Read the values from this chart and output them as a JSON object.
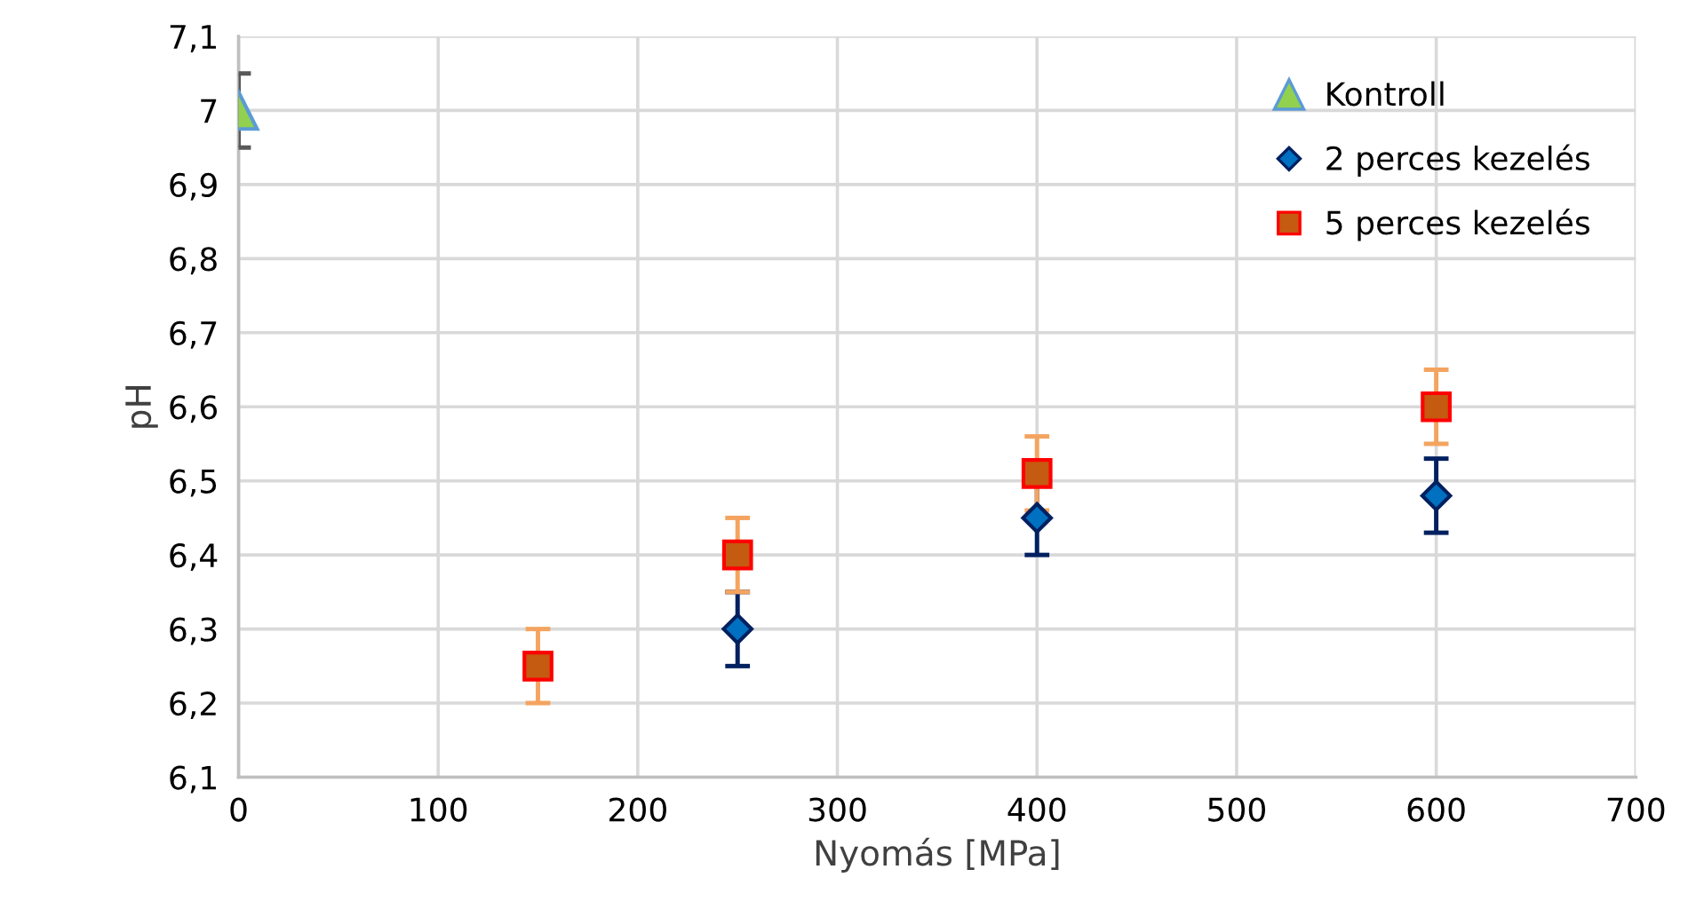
{
  "chart_data": {
    "type": "scatter",
    "xlabel": "Nyomás [MPa]",
    "ylabel": "pH",
    "xlim": [
      0,
      700
    ],
    "xticks": [
      0,
      100,
      200,
      300,
      400,
      500,
      600,
      700
    ],
    "ylim": [
      6.1,
      7.1
    ],
    "yticks": [
      {
        "value": 6.1,
        "label": "6,1"
      },
      {
        "value": 6.2,
        "label": "6,2"
      },
      {
        "value": 6.3,
        "label": "6,3"
      },
      {
        "value": 6.4,
        "label": "6,4"
      },
      {
        "value": 6.5,
        "label": "6,5"
      },
      {
        "value": 6.6,
        "label": "6,6"
      },
      {
        "value": 6.7,
        "label": "6,7"
      },
      {
        "value": 6.8,
        "label": "6,8"
      },
      {
        "value": 6.9,
        "label": "6,9"
      },
      {
        "value": 7,
        "label": "7"
      },
      {
        "value": 7.1,
        "label": "7,1"
      }
    ],
    "grid": true,
    "legend": "top right",
    "series": [
      {
        "name": "Kontroll",
        "color": "#92d050",
        "marker": "triangle",
        "x": [
          0
        ],
        "values": [
          7.0
        ],
        "errors": [
          0.05
        ]
      },
      {
        "name": "2 perces kezelés",
        "color": "#0070c0",
        "marker": "diamond",
        "x": [
          250,
          400,
          600
        ],
        "values": [
          6.3,
          6.45,
          6.48
        ],
        "errors": [
          0.05,
          0.05,
          0.05
        ]
      },
      {
        "name": "5 perces kezelés",
        "color": "#c55a11",
        "marker": "square",
        "x": [
          150,
          250,
          400,
          600
        ],
        "values": [
          6.25,
          6.4,
          6.51,
          6.6
        ],
        "errors": [
          0.05,
          0.05,
          0.05,
          0.05
        ]
      }
    ]
  }
}
